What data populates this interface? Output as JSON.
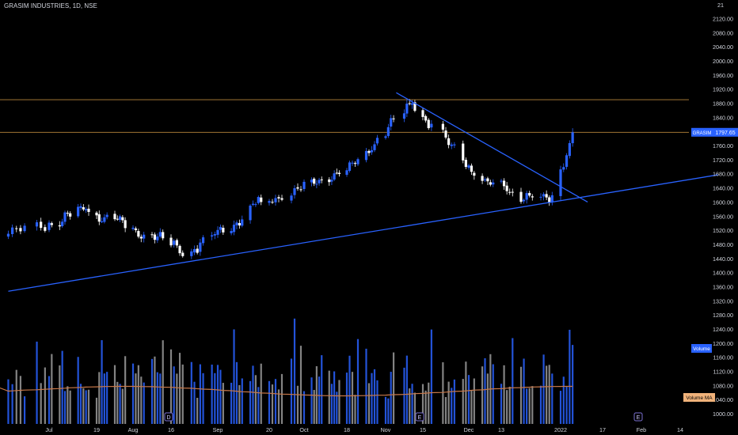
{
  "header": {
    "title": "GRASIM INDUSTRIES, 1D, NSE"
  },
  "price_axis": {
    "ticks": [
      "2120.00",
      "2080.00",
      "2040.00",
      "2000.00",
      "1960.00",
      "1920.00",
      "1880.00",
      "1840.00",
      "1800.00",
      "1760.00",
      "1720.00",
      "1680.00",
      "1640.00",
      "1600.00",
      "1560.00",
      "1520.00",
      "1480.00",
      "1440.00",
      "1400.00",
      "1360.00",
      "1320.00",
      "1280.00",
      "1240.00",
      "1200.00",
      "1160.00",
      "1120.00",
      "1080.00",
      "1040.00",
      "1000.00"
    ],
    "top_partial": "21",
    "last_price_tag": {
      "symbol": "GRASIM",
      "value": "1797.65"
    },
    "volume_tag": "Volume",
    "volume_ma_tag": "Volume MA"
  },
  "time_axis": {
    "labels": [
      "Jul",
      "19",
      "Aug",
      "16",
      "Sep",
      "20",
      "Oct",
      "18",
      "Nov",
      "15",
      "Dec",
      "13",
      "2022",
      "17",
      "Feb",
      "14"
    ]
  },
  "markers": [
    "D",
    "E",
    "E"
  ],
  "colors": {
    "bg": "#000000",
    "up": "#2962ff",
    "down": "#ffffff",
    "level": "#b8863b",
    "trend": "#2962ff",
    "vol_ma": "#c8784a",
    "text": "#d1d4dc"
  },
  "chart_data": {
    "type": "candlestick",
    "symbol": "GRASIM",
    "interval": "1D",
    "exchange": "NSE",
    "y_axis_range": [
      1000,
      2140
    ],
    "last_price": 1797.65,
    "horizontal_levels": [
      1890,
      1797.65
    ],
    "trendlines": [
      {
        "from": [
          "2021-06-21",
          1347
        ],
        "to": [
          "2022-02-28",
          1677
        ]
      },
      {
        "from": [
          "2021-11-05",
          1910
        ],
        "to": [
          "2022-01-12",
          1600
        ]
      }
    ],
    "volume_ma_level": 1055,
    "key_closes": [
      {
        "date": "2021-06-21",
        "close": 1510
      },
      {
        "date": "2021-07-15",
        "close": 1580
      },
      {
        "date": "2021-08-23",
        "close": 1460
      },
      {
        "date": "2021-09-17",
        "close": 1600
      },
      {
        "date": "2021-10-18",
        "close": 1690
      },
      {
        "date": "2021-11-11",
        "close": 1880
      },
      {
        "date": "2021-12-06",
        "close": 1660
      },
      {
        "date": "2021-12-30",
        "close": 1600
      },
      {
        "date": "2022-01-07",
        "close": 1797.65
      }
    ]
  }
}
